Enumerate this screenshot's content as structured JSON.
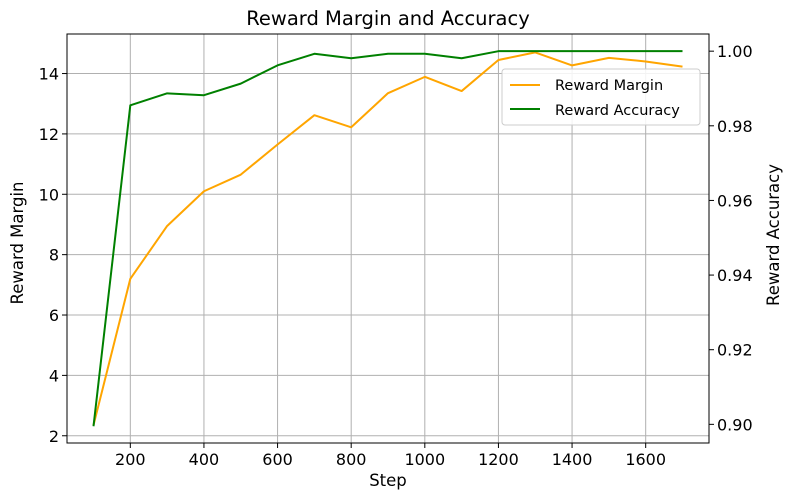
{
  "chart_data": {
    "type": "line",
    "title": "Reward Margin and Accuracy",
    "xlabel": "Step",
    "ylabel_left": "Reward Margin",
    "ylabel_right": "Reward Accuracy",
    "xlim": [
      28,
      1772
    ],
    "ylim_left": [
      1.76,
      15.31
    ],
    "ylim_right": [
      0.895,
      1.0046
    ],
    "x_ticks": [
      200,
      400,
      600,
      800,
      1000,
      1200,
      1400,
      1600
    ],
    "y_left_ticks": [
      2,
      4,
      6,
      8,
      10,
      12,
      14
    ],
    "y_right_ticks": [
      0.9,
      0.92,
      0.94,
      0.96,
      0.98,
      1.0
    ],
    "grid": true,
    "legend_position": "upper right",
    "series": [
      {
        "name": "Reward Margin",
        "axis": "left",
        "color": "#ffa500",
        "x": [
          100,
          200,
          300,
          400,
          500,
          600,
          700,
          800,
          900,
          1000,
          1100,
          1200,
          1300,
          1400,
          1500,
          1600,
          1700
        ],
        "values": [
          2.35,
          7.2,
          8.95,
          10.1,
          10.65,
          11.65,
          12.62,
          12.22,
          13.35,
          13.89,
          13.42,
          14.45,
          14.7,
          14.27,
          14.52,
          14.4,
          14.23
        ]
      },
      {
        "name": "Reward Accuracy",
        "axis": "right",
        "color": "#008000",
        "x": [
          100,
          200,
          300,
          400,
          500,
          600,
          700,
          800,
          900,
          1000,
          1100,
          1200,
          1300,
          1400,
          1500,
          1600,
          1700
        ],
        "values": [
          0.8995,
          0.9855,
          0.9887,
          0.9882,
          0.9913,
          0.9962,
          0.9993,
          0.9981,
          0.9993,
          0.9993,
          0.9981,
          1.0,
          1.0,
          1.0,
          1.0,
          1.0,
          1.0
        ]
      }
    ]
  }
}
